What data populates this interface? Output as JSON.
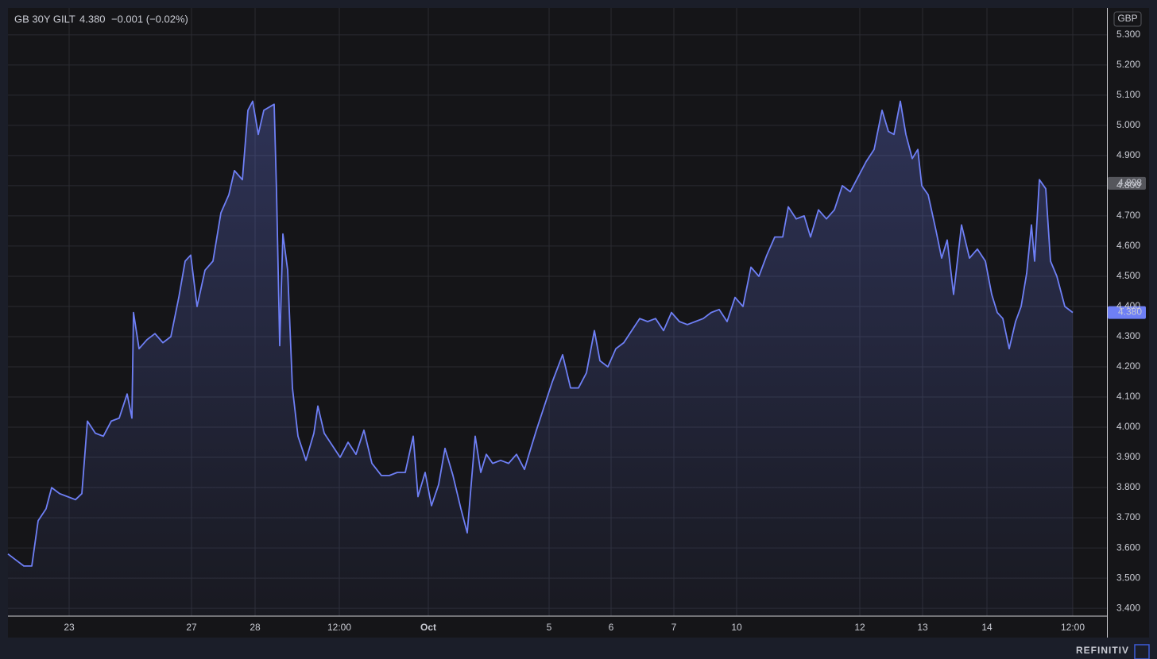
{
  "chart_data": {
    "type": "area-line",
    "title": "GB 30Y GILT",
    "change": "−0.001 (−0.02%)",
    "currency": "GBP",
    "source": "REFINITIV",
    "color": "#6e7ff5",
    "grid": true,
    "last_price": {
      "value": 4.38,
      "label": "4.380"
    },
    "marker_price": {
      "value": 4.808,
      "label": "4.808"
    },
    "xlim": [
      0,
      1383
    ],
    "xticks": [
      {
        "value": 77,
        "label": "23"
      },
      {
        "value": 231,
        "label": "27"
      },
      {
        "value": 311,
        "label": "28"
      },
      {
        "value": 417,
        "label": "12:00"
      },
      {
        "value": 529,
        "label": "Oct"
      },
      {
        "value": 681,
        "label": "5"
      },
      {
        "value": 759,
        "label": "6"
      },
      {
        "value": 838,
        "label": "7"
      },
      {
        "value": 917,
        "label": "10"
      },
      {
        "value": 1072,
        "label": "12"
      },
      {
        "value": 1151,
        "label": "13"
      },
      {
        "value": 1232,
        "label": "14"
      },
      {
        "value": 1340,
        "label": "12:00"
      }
    ],
    "ylim": [
      3.374,
      5.389
    ],
    "yticks": [
      {
        "value": 3.4,
        "label": "3.400"
      },
      {
        "value": 3.5,
        "label": "3.500"
      },
      {
        "value": 3.6,
        "label": "3.600"
      },
      {
        "value": 3.7,
        "label": "3.700"
      },
      {
        "value": 3.8,
        "label": "3.800"
      },
      {
        "value": 3.9,
        "label": "3.900"
      },
      {
        "value": 4.0,
        "label": "4.000"
      },
      {
        "value": 4.1,
        "label": "4.100"
      },
      {
        "value": 4.2,
        "label": "4.200"
      },
      {
        "value": 4.3,
        "label": "4.300"
      },
      {
        "value": 4.4,
        "label": "4.400"
      },
      {
        "value": 4.5,
        "label": "4.500"
      },
      {
        "value": 4.6,
        "label": "4.600"
      },
      {
        "value": 4.7,
        "label": "4.700"
      },
      {
        "value": 4.8,
        "label": "4.800"
      },
      {
        "value": 4.9,
        "label": "4.900"
      },
      {
        "value": 5.0,
        "label": "5.000"
      },
      {
        "value": 5.1,
        "label": "5.100"
      },
      {
        "value": 5.2,
        "label": "5.200"
      },
      {
        "value": 5.3,
        "label": "5.300"
      }
    ],
    "x": [
      0,
      10,
      20,
      30,
      38,
      48,
      55,
      65,
      75,
      85,
      93,
      100,
      110,
      120,
      130,
      140,
      150,
      156,
      158,
      165,
      175,
      185,
      195,
      205,
      215,
      223,
      230,
      238,
      248,
      258,
      268,
      278,
      285,
      295,
      302,
      308,
      315,
      322,
      335,
      338,
      342,
      346,
      352,
      358,
      365,
      375,
      385,
      390,
      398,
      408,
      418,
      428,
      438,
      448,
      458,
      470,
      480,
      490,
      500,
      510,
      516,
      525,
      533,
      542,
      550,
      560,
      570,
      578,
      582,
      588,
      595,
      602,
      610,
      620,
      630,
      640,
      650,
      658,
      665,
      675,
      685,
      698,
      708,
      718,
      728,
      738,
      745,
      755,
      765,
      775,
      785,
      795,
      805,
      815,
      825,
      835,
      845,
      855,
      865,
      875,
      885,
      895,
      905,
      915,
      925,
      935,
      945,
      955,
      965,
      975,
      982,
      992,
      1002,
      1010,
      1020,
      1030,
      1040,
      1050,
      1060,
      1070,
      1080,
      1090,
      1100,
      1108,
      1115,
      1123,
      1130,
      1138,
      1145,
      1150,
      1158,
      1168,
      1175,
      1182,
      1190,
      1200,
      1210,
      1220,
      1230,
      1238,
      1245,
      1252,
      1260,
      1268,
      1275,
      1282,
      1288,
      1292,
      1298,
      1306,
      1312,
      1320,
      1330,
      1340
    ],
    "values": [
      3.58,
      3.56,
      3.54,
      3.54,
      3.69,
      3.73,
      3.8,
      3.78,
      3.77,
      3.76,
      3.78,
      4.02,
      3.98,
      3.97,
      4.02,
      4.03,
      4.11,
      4.03,
      4.38,
      4.26,
      4.29,
      4.31,
      4.28,
      4.3,
      4.43,
      4.55,
      4.57,
      4.4,
      4.52,
      4.55,
      4.71,
      4.77,
      4.85,
      4.82,
      5.05,
      5.08,
      4.97,
      5.05,
      5.07,
      4.78,
      4.27,
      4.64,
      4.52,
      4.13,
      3.97,
      3.89,
      3.98,
      4.07,
      3.98,
      3.94,
      3.9,
      3.95,
      3.91,
      3.99,
      3.88,
      3.84,
      3.84,
      3.85,
      3.85,
      3.97,
      3.77,
      3.85,
      3.74,
      3.81,
      3.93,
      3.84,
      3.73,
      3.65,
      3.78,
      3.97,
      3.85,
      3.91,
      3.88,
      3.89,
      3.88,
      3.91,
      3.86,
      3.93,
      3.99,
      4.07,
      4.15,
      4.24,
      4.13,
      4.13,
      4.18,
      4.32,
      4.22,
      4.2,
      4.26,
      4.28,
      4.32,
      4.36,
      4.35,
      4.36,
      4.32,
      4.38,
      4.35,
      4.34,
      4.35,
      4.36,
      4.38,
      4.39,
      4.35,
      4.43,
      4.4,
      4.53,
      4.5,
      4.57,
      4.63,
      4.63,
      4.73,
      4.69,
      4.7,
      4.63,
      4.72,
      4.69,
      4.72,
      4.8,
      4.78,
      4.83,
      4.88,
      4.92,
      5.05,
      4.98,
      4.97,
      5.08,
      4.97,
      4.89,
      4.92,
      4.8,
      4.77,
      4.65,
      4.56,
      4.62,
      4.44,
      4.67,
      4.56,
      4.59,
      4.55,
      4.44,
      4.38,
      4.36,
      4.26,
      4.35,
      4.4,
      4.51,
      4.67,
      4.55,
      4.82,
      4.79,
      4.55,
      4.5,
      4.4,
      4.38
    ]
  }
}
